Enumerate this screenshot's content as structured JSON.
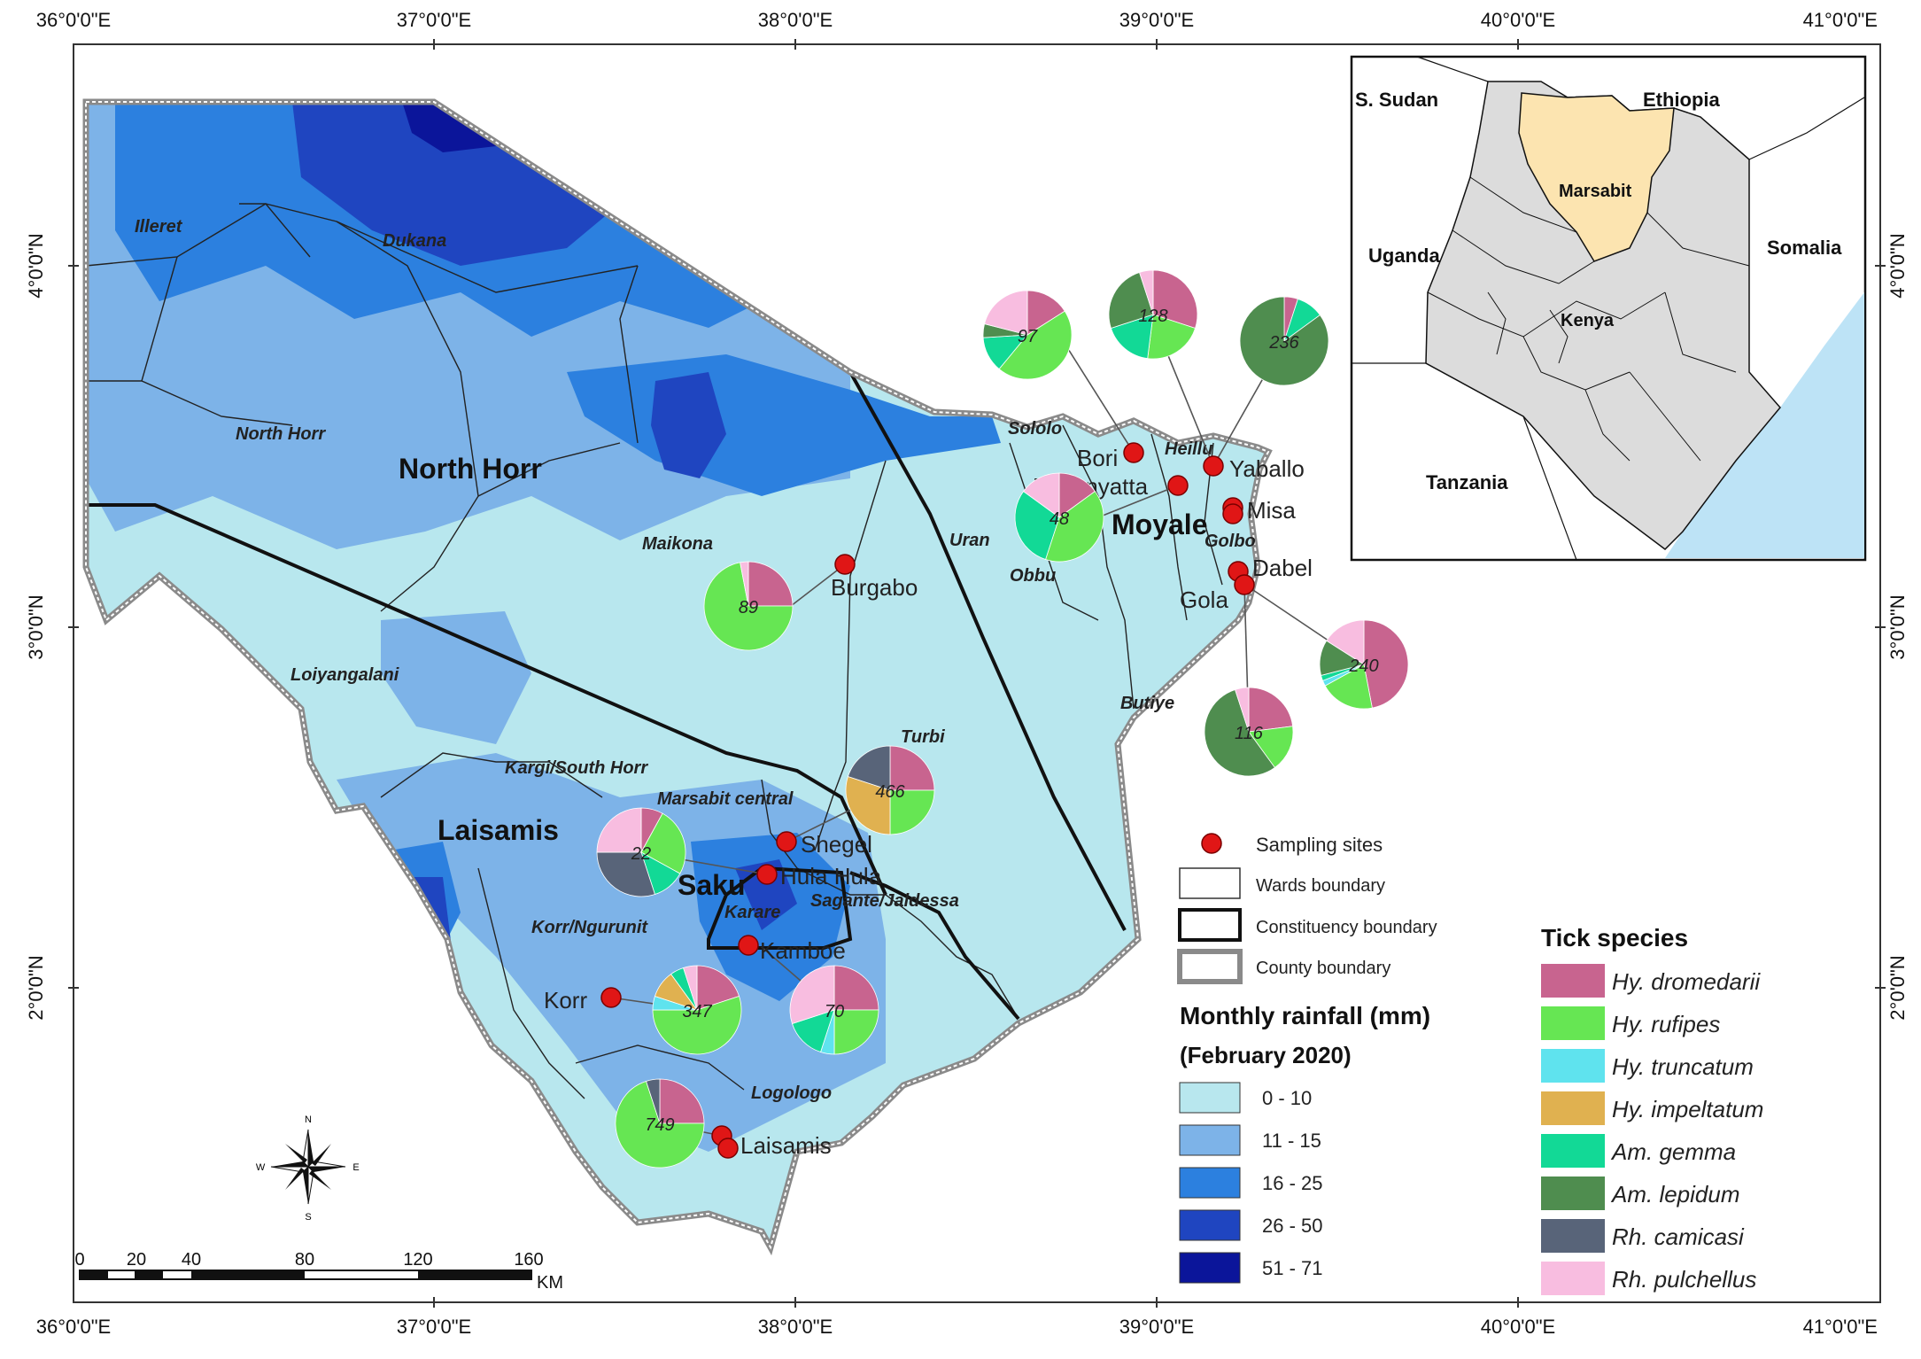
{
  "axes": {
    "top_labels": [
      "36°0'0\"E",
      "37°0'0\"E",
      "38°0'0\"E",
      "39°0'0\"E",
      "40°0'0\"E",
      "41°0'0\"E"
    ],
    "bottom_labels": [
      "36°0'0\"E",
      "37°0'0\"E",
      "38°0'0\"E",
      "39°0'0\"E",
      "40°0'0\"E",
      "41°0'0\"E"
    ],
    "left_labels": [
      "4°0'0\"N",
      "3°0'0\"N",
      "2°0'0\"N"
    ],
    "right_labels": [
      "4°0'0\"N",
      "3°0'0\"N",
      "2°0'0\"N"
    ],
    "lon_range": [
      36,
      41
    ],
    "lat_ticks": [
      4,
      3,
      2
    ]
  },
  "constituencies": [
    "North Horr",
    "Moyale",
    "Laisamis",
    "Saku"
  ],
  "wards": [
    "Illeret",
    "Dukana",
    "North Horr",
    "Maikona",
    "Loiyangalani",
    "Kargi/South Horr",
    "Marsabit central",
    "Turbi",
    "Sololo",
    "Heillu",
    "Uran",
    "Obbu",
    "Golbo",
    "Butiye",
    "Karare",
    "Sagante/Jaldessa",
    "Korr/Ngurunit",
    "Logologo"
  ],
  "sites": [
    "Bori",
    "Funanyatta",
    "Yaballo",
    "Misa",
    "Dabel",
    "Gola",
    "Burgabo",
    "Shegel",
    "Hula Hula",
    "Kamboe",
    "Korr",
    "Laisamis"
  ],
  "species": [
    {
      "name": "Hy. dromedarii",
      "color": "#c8648f"
    },
    {
      "name": "Hy. rufipes",
      "color": "#66e653"
    },
    {
      "name": "Hy. truncatum",
      "color": "#5fe3ee"
    },
    {
      "name": "Hy. impeltatum",
      "color": "#e0b150"
    },
    {
      "name": "Am. gemma",
      "color": "#12d996"
    },
    {
      "name": "Am. lepidum",
      "color": "#4f8d4f"
    },
    {
      "name": "Rh. camicasi",
      "color": "#586479"
    },
    {
      "name": "Rh. pulchellus",
      "color": "#f8bde0"
    }
  ],
  "pies": [
    {
      "total": "97",
      "fractions": [
        0.16,
        0.45,
        0,
        0,
        0.13,
        0.05,
        0,
        0.21
      ]
    },
    {
      "total": "128",
      "fractions": [
        0.3,
        0.22,
        0,
        0,
        0.18,
        0.25,
        0,
        0.05
      ]
    },
    {
      "total": "236",
      "fractions": [
        0.05,
        0,
        0,
        0,
        0.1,
        0.85,
        0,
        0
      ]
    },
    {
      "total": "48",
      "fractions": [
        0.15,
        0.4,
        0,
        0,
        0.3,
        0,
        0,
        0.15
      ]
    },
    {
      "total": "89",
      "fractions": [
        0.25,
        0.72,
        0,
        0,
        0,
        0,
        0,
        0.03
      ]
    },
    {
      "total": "240",
      "fractions": [
        0.47,
        0.2,
        0.02,
        0,
        0.02,
        0.13,
        0,
        0.16
      ]
    },
    {
      "total": "116",
      "fractions": [
        0.23,
        0.17,
        0,
        0,
        0,
        0.55,
        0,
        0.05
      ]
    },
    {
      "total": "466",
      "fractions": [
        0.25,
        0.25,
        0,
        0.3,
        0,
        0,
        0.2,
        0
      ]
    },
    {
      "total": "22",
      "fractions": [
        0.08,
        0.25,
        0,
        0,
        0.12,
        0,
        0.3,
        0.25
      ]
    },
    {
      "total": "347",
      "fractions": [
        0.2,
        0.55,
        0.05,
        0.1,
        0.05,
        0,
        0,
        0.05
      ]
    },
    {
      "total": "70",
      "fractions": [
        0.25,
        0.25,
        0.05,
        0,
        0.15,
        0,
        0,
        0.3
      ]
    },
    {
      "total": "749",
      "fractions": [
        0.25,
        0.7,
        0,
        0,
        0,
        0,
        0.05,
        0
      ]
    }
  ],
  "legend": {
    "sampling_sites": "Sampling sites",
    "wards_boundary": "Wards boundary",
    "constituency_boundary": "Constituency boundary",
    "county_boundary": "County boundary",
    "rainfall_title": "Monthly rainfall (mm)",
    "rainfall_subtitle": "(February 2020)",
    "rainfall_classes": [
      {
        "label": "0 - 10",
        "color": "#b8e7ee"
      },
      {
        "label": "11 - 15",
        "color": "#7db3e8"
      },
      {
        "label": "16 - 25",
        "color": "#2c80df"
      },
      {
        "label": "26 - 50",
        "color": "#1f45c0"
      },
      {
        "label": "51 - 71",
        "color": "#0b159a"
      }
    ],
    "species_title": "Tick species"
  },
  "inset": {
    "countries": [
      "S. Sudan",
      "Ethiopia",
      "Uganda",
      "Somalia",
      "Tanzania"
    ],
    "kenya": "Kenya",
    "county": "Marsabit",
    "county_color": "#fce4b0",
    "land_color": "#dcdcdc",
    "sea_color": "#bde3f6"
  },
  "scalebar": {
    "ticks": [
      "0",
      "20",
      "40",
      "80",
      "120",
      "160"
    ],
    "unit": "KM"
  },
  "compass": [
    "N",
    "S",
    "W",
    "E"
  ]
}
